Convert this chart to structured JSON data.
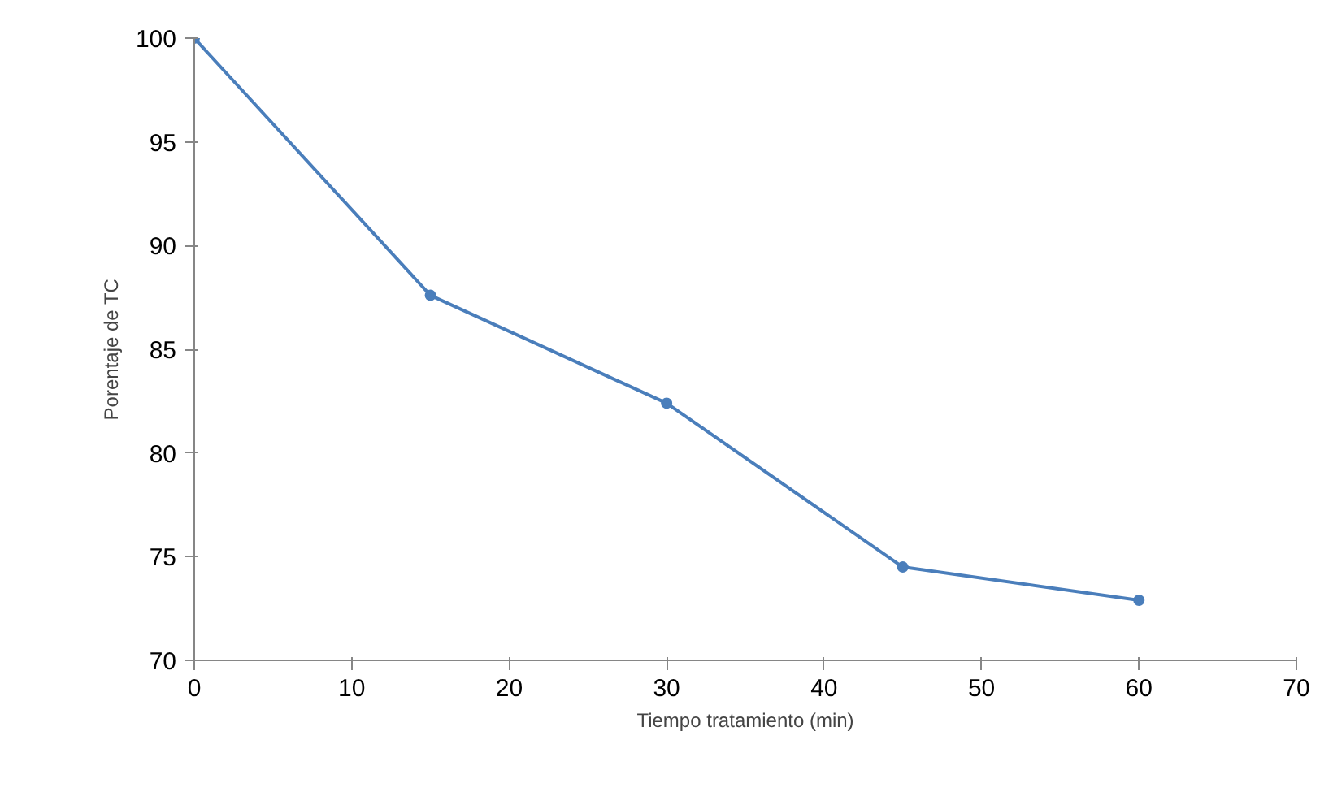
{
  "chart_data": {
    "type": "line",
    "xlabel": "Tiempo tratamiento (min)",
    "ylabel": "Porentaje de TC",
    "x": [
      0,
      15,
      30,
      45,
      60
    ],
    "series": [
      {
        "color": "#4a7ebb",
        "values": [
          100,
          87.6,
          82.4,
          74.5,
          72.9
        ]
      }
    ],
    "xlim": [
      0,
      70
    ],
    "xticks": [
      0,
      10,
      20,
      30,
      40,
      50,
      60,
      70
    ],
    "ylim": [
      70,
      100
    ],
    "yticks": [
      70,
      75,
      80,
      85,
      90,
      95,
      100
    ],
    "grid": false,
    "marker": "circle",
    "line_style": "solid"
  }
}
